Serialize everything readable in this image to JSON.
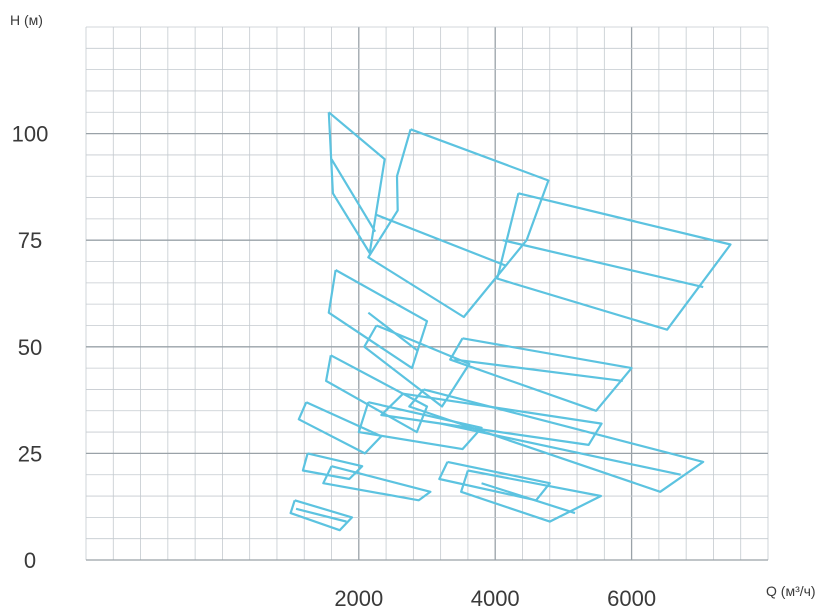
{
  "chart_data": {
    "type": "line",
    "title": "",
    "xlabel": "Q (м³/ч)",
    "ylabel": "H (м)",
    "xlim": [
      -2000,
      8000
    ],
    "ylim": [
      0,
      125
    ],
    "x_ticks": [
      2000,
      4000,
      6000
    ],
    "y_ticks": [
      0,
      25,
      50,
      75,
      100
    ],
    "grid": "on",
    "line_color": "#5cc3e0",
    "regions": [
      {
        "points": [
          [
            1560,
            105
          ],
          [
            2380,
            94
          ],
          [
            2160,
            72
          ],
          [
            1620,
            86
          ],
          [
            1560,
            105
          ]
        ],
        "dividers": [
          [
            [
              1600,
              94
            ],
            [
              2240,
              77
            ]
          ]
        ]
      },
      {
        "points": [
          [
            2760,
            101
          ],
          [
            4780,
            89
          ],
          [
            4460,
            75
          ],
          [
            3540,
            57
          ],
          [
            2140,
            71
          ],
          [
            2570,
            82
          ],
          [
            2560,
            90
          ],
          [
            2760,
            101
          ]
        ],
        "dividers": [
          [
            [
              2250,
              81
            ],
            [
              4160,
              69
            ]
          ]
        ]
      },
      {
        "points": [
          [
            4340,
            86
          ],
          [
            7450,
            74
          ],
          [
            6520,
            54
          ],
          [
            4030,
            66
          ],
          [
            4340,
            86
          ]
        ],
        "dividers": [
          [
            [
              4110,
              75
            ],
            [
              7050,
              64
            ]
          ]
        ]
      },
      {
        "points": [
          [
            1660,
            68
          ],
          [
            3000,
            56
          ],
          [
            2780,
            45
          ],
          [
            1560,
            58
          ],
          [
            1660,
            68
          ]
        ],
        "dividers": [
          [
            [
              2140,
              58
            ],
            [
              2870,
              49
            ]
          ]
        ]
      },
      {
        "points": [
          [
            2260,
            55
          ],
          [
            3620,
            46
          ],
          [
            3220,
            36
          ],
          [
            2080,
            50
          ],
          [
            2260,
            55
          ]
        ],
        "dividers": []
      },
      {
        "points": [
          [
            3520,
            52
          ],
          [
            6000,
            45
          ],
          [
            5480,
            35
          ],
          [
            3340,
            47
          ],
          [
            3520,
            52
          ]
        ],
        "dividers": [
          [
            [
              3400,
              47
            ],
            [
              5870,
              42
            ]
          ]
        ]
      },
      {
        "points": [
          [
            1590,
            48
          ],
          [
            3000,
            36
          ],
          [
            2850,
            30
          ],
          [
            1520,
            42
          ],
          [
            1590,
            48
          ]
        ],
        "dividers": []
      },
      {
        "points": [
          [
            1230,
            37
          ],
          [
            2330,
            29
          ],
          [
            2090,
            25
          ],
          [
            1120,
            33
          ],
          [
            1230,
            37
          ]
        ],
        "dividers": []
      },
      {
        "points": [
          [
            2140,
            37
          ],
          [
            3800,
            31
          ],
          [
            3520,
            26
          ],
          [
            2000,
            30
          ],
          [
            2140,
            37
          ]
        ],
        "dividers": []
      },
      {
        "points": [
          [
            2650,
            39
          ],
          [
            5560,
            32
          ],
          [
            5370,
            27
          ],
          [
            2330,
            34
          ],
          [
            2650,
            39
          ]
        ],
        "dividers": []
      },
      {
        "points": [
          [
            2950,
            40
          ],
          [
            7050,
            23
          ],
          [
            6420,
            16
          ],
          [
            2740,
            36
          ],
          [
            2950,
            40
          ]
        ],
        "dividers": [
          [
            [
              3200,
              32
            ],
            [
              6720,
              20
            ]
          ]
        ]
      },
      {
        "points": [
          [
            1250,
            25
          ],
          [
            2050,
            22
          ],
          [
            1860,
            19
          ],
          [
            1180,
            21
          ],
          [
            1250,
            25
          ]
        ],
        "dividers": []
      },
      {
        "points": [
          [
            1600,
            22
          ],
          [
            3050,
            16
          ],
          [
            2880,
            14
          ],
          [
            1480,
            18
          ],
          [
            1600,
            22
          ]
        ],
        "dividers": []
      },
      {
        "points": [
          [
            3300,
            23
          ],
          [
            4800,
            18
          ],
          [
            4600,
            14
          ],
          [
            3180,
            19
          ],
          [
            3300,
            23
          ]
        ],
        "dividers": []
      },
      {
        "points": [
          [
            3600,
            21
          ],
          [
            5550,
            15
          ],
          [
            4800,
            9
          ],
          [
            3500,
            16
          ],
          [
            3600,
            21
          ]
        ],
        "dividers": [
          [
            [
              3800,
              18
            ],
            [
              5170,
              11
            ]
          ]
        ]
      },
      {
        "points": [
          [
            1060,
            14
          ],
          [
            1900,
            10
          ],
          [
            1720,
            7
          ],
          [
            1000,
            11
          ],
          [
            1060,
            14
          ]
        ],
        "dividers": [
          [
            [
              1080,
              12
            ],
            [
              1820,
              9
            ]
          ]
        ]
      }
    ]
  }
}
